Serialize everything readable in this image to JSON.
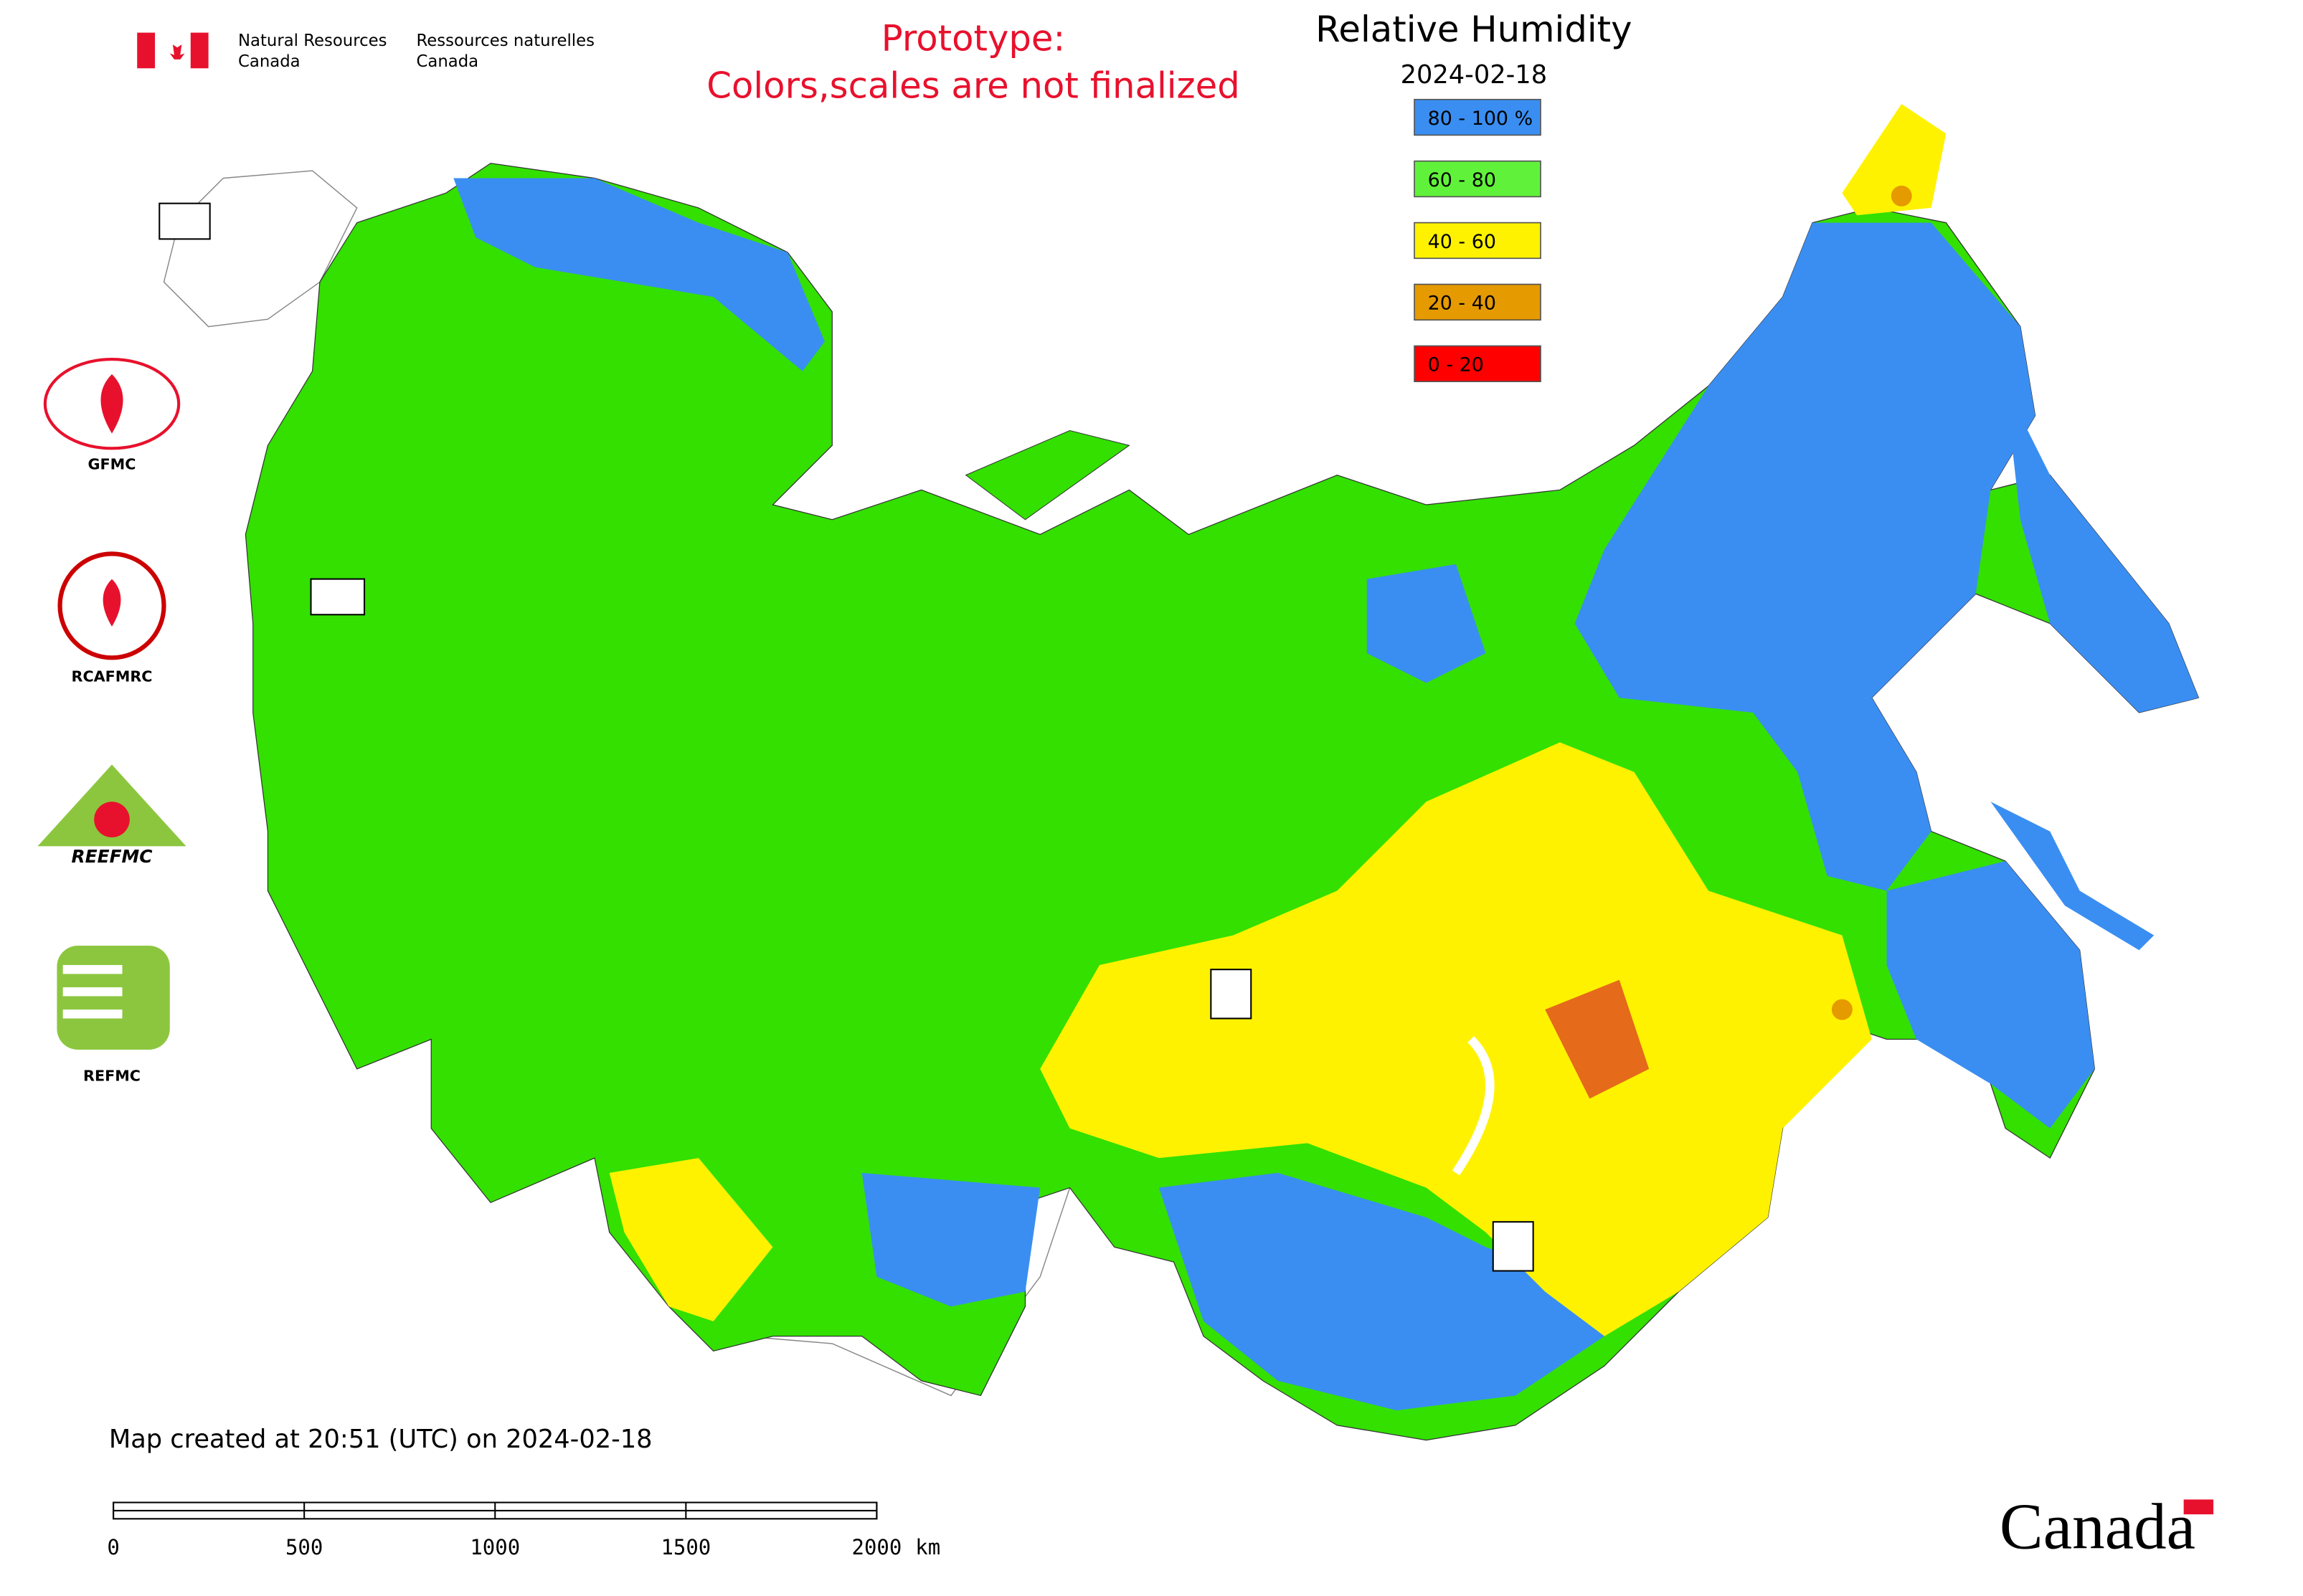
{
  "header": {
    "agency_en": [
      "Natural Resources",
      "Canada"
    ],
    "agency_fr": [
      "Ressources naturelles",
      "Canada"
    ],
    "notice": [
      "Prototype:",
      "Colors,scales are not finalized"
    ]
  },
  "legend": {
    "title": "Relative Humidity",
    "date": "2024-02-18",
    "items": [
      {
        "label": "80 - 100 %",
        "color": "#3a8ef2"
      },
      {
        "label": "60 - 80",
        "color": "#60f23a"
      },
      {
        "label": "40 - 60",
        "color": "#fff200"
      },
      {
        "label": "20 - 40",
        "color": "#e59a00"
      },
      {
        "label": "0 - 20",
        "color": "#ff0000"
      }
    ]
  },
  "logos": {
    "labels": [
      "GFMC",
      "RCAFMRC",
      "REFMC"
    ],
    "reefmc_text": "REEFMC"
  },
  "footer": {
    "created": "Map created at 20:51 (UTC) on 2024-02-18",
    "scale_ticks": [
      0,
      500,
      1000,
      1500,
      2000
    ],
    "scale_unit": "km",
    "wordmark": "Canada"
  }
}
